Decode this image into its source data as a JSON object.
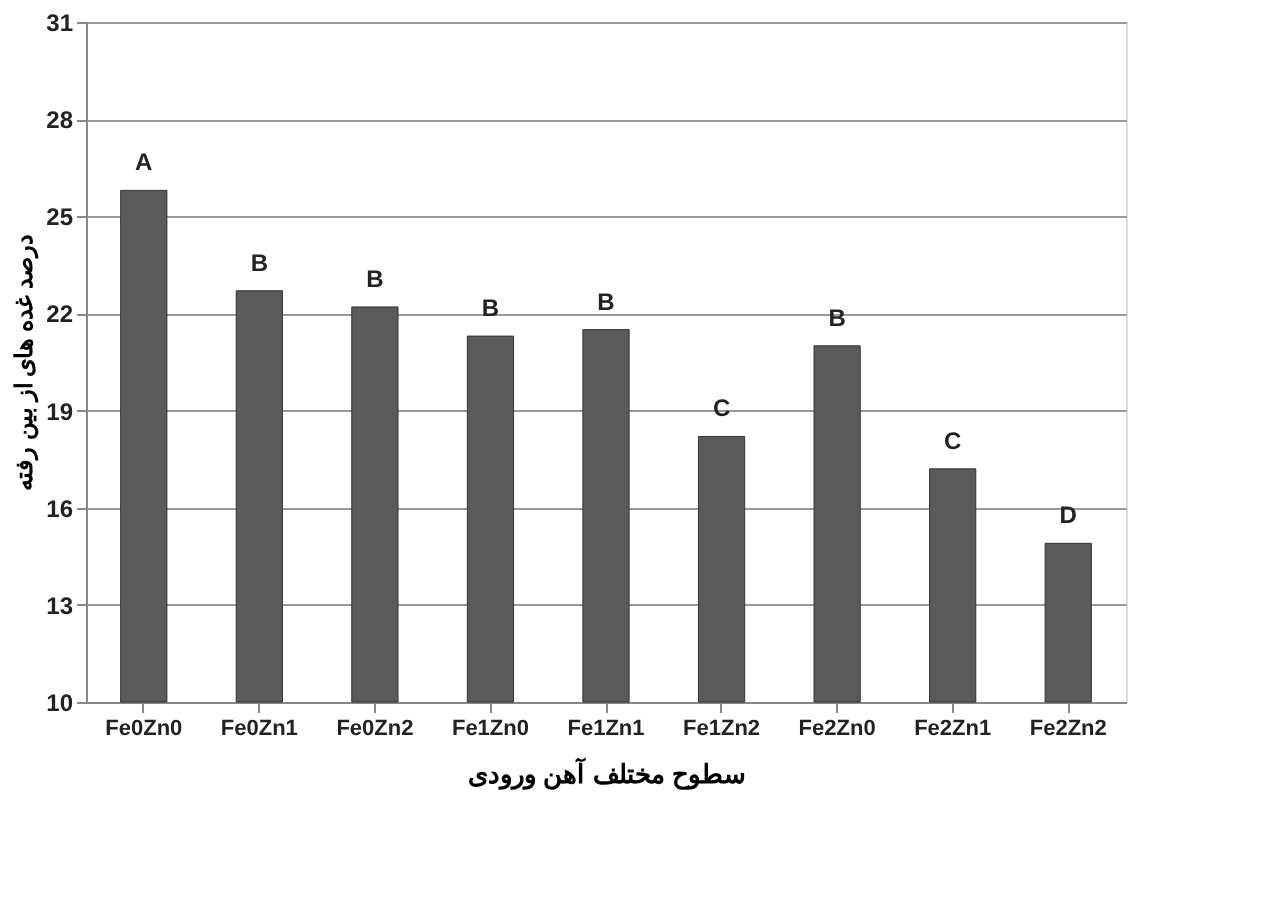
{
  "chart_data": {
    "type": "bar",
    "xlabel": "سطوح مختلف آهن ورودی",
    "ylabel": "درصد غده های از بین رفته",
    "categories": [
      "Fe0Zn0",
      "Fe0Zn1",
      "Fe0Zn2",
      "Fe1Zn0",
      "Fe1Zn1",
      "Fe1Zn2",
      "Fe2Zn0",
      "Fe2Zn1",
      "Fe2Zn2"
    ],
    "values": [
      25.8,
      22.7,
      22.2,
      21.3,
      21.5,
      18.2,
      21.0,
      17.2,
      14.9
    ],
    "color": "#5a5a5a",
    "ylim": [
      10,
      31
    ],
    "yticks": [
      10,
      13,
      16,
      19,
      22,
      25,
      28,
      31
    ],
    "grid": "y",
    "annotations": [
      {
        "text": "A",
        "x": "Fe0Zn0",
        "y": 25.8
      },
      {
        "text": "B",
        "x": "Fe0Zn1",
        "y": 22.7
      },
      {
        "text": "B",
        "x": "Fe0Zn2",
        "y": 22.2
      },
      {
        "text": "B",
        "x": "Fe1Zn0",
        "y": 21.3
      },
      {
        "text": "B",
        "x": "Fe1Zn1",
        "y": 21.5
      },
      {
        "text": "C",
        "x": "Fe1Zn2",
        "y": 18.2
      },
      {
        "text": "B",
        "x": "Fe2Zn0",
        "y": 21.0
      },
      {
        "text": "C",
        "x": "Fe2Zn1",
        "y": 17.2
      },
      {
        "text": "D",
        "x": "Fe2Zn2",
        "y": 14.9
      }
    ]
  }
}
